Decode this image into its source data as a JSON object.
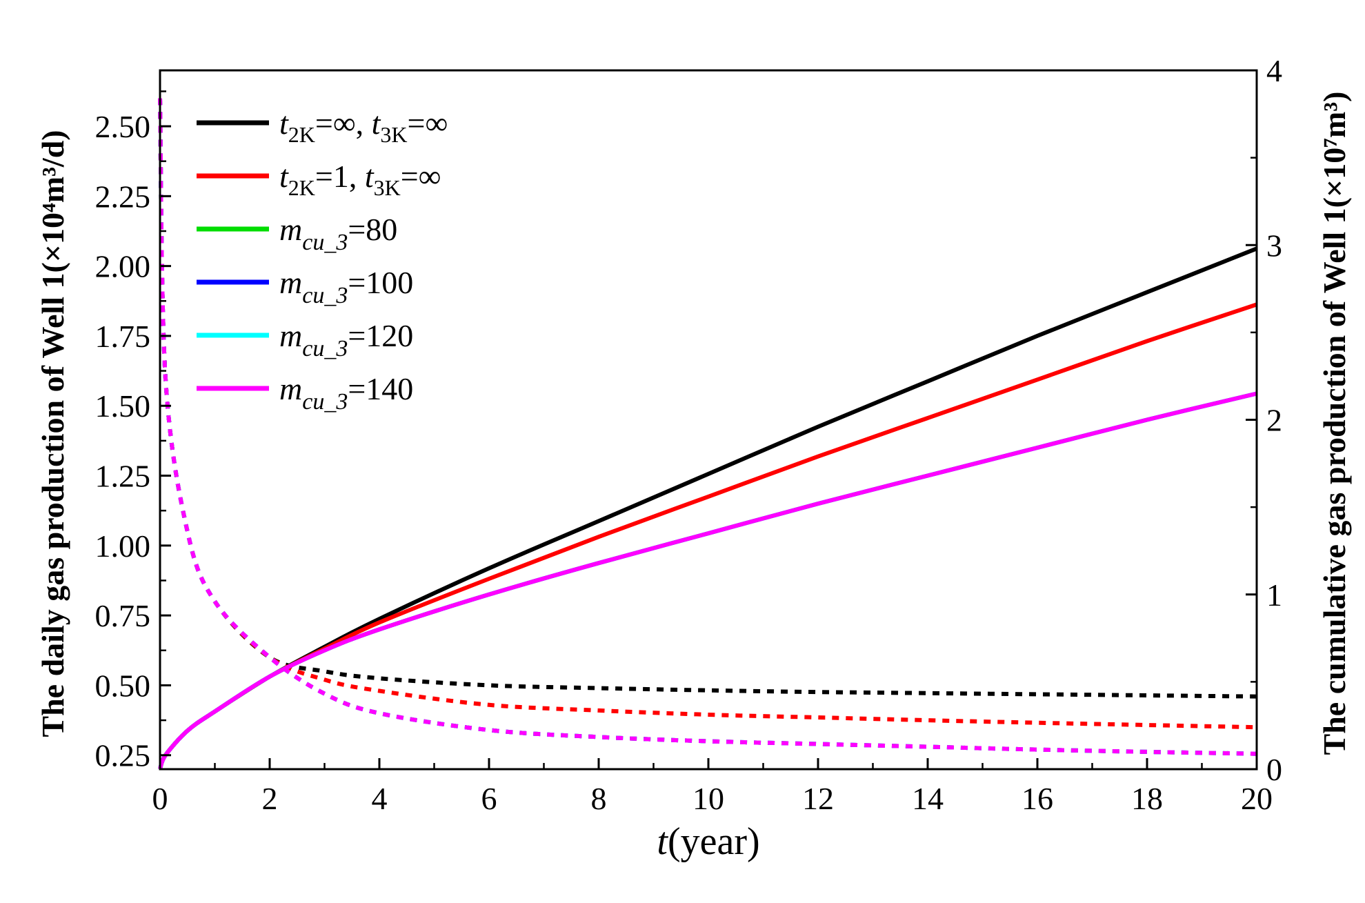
{
  "chart_data": {
    "type": "line",
    "x_axis": {
      "title_var": "t",
      "title_unit": "(year)",
      "range": [
        0,
        20
      ],
      "ticks": [
        0,
        2,
        4,
        6,
        8,
        10,
        12,
        14,
        16,
        18,
        20
      ],
      "tick_labels": [
        "0",
        "2",
        "4",
        "6",
        "8",
        "10",
        "12",
        "14",
        "16",
        "18",
        "20"
      ]
    },
    "y_left": {
      "title": "The daily gas production of Well 1(×10⁴m³/d)",
      "range": [
        0.2,
        2.7
      ],
      "ticks": [
        0.25,
        0.5,
        0.75,
        1.0,
        1.25,
        1.5,
        1.75,
        2.0,
        2.25,
        2.5
      ],
      "tick_labels": [
        "0.25",
        "0.50",
        "0.75",
        "1.00",
        "1.25",
        "1.50",
        "1.75",
        "2.00",
        "2.25",
        "2.50"
      ]
    },
    "y_right": {
      "title": "The cumulative gas production of Well 1(×10⁷m³)",
      "range": [
        0,
        4
      ],
      "ticks": [
        0,
        1,
        2,
        3,
        4
      ],
      "tick_labels": [
        "0",
        "1",
        "2",
        "3",
        "4"
      ]
    },
    "line_styles": {
      "solid": "cumulative gas production (right axis)",
      "dotted": "daily gas production (left axis)"
    },
    "legend_position": "top-left",
    "series": [
      {
        "name": "t2K=∞, t3K=∞",
        "legend_parts": [
          "t",
          "2K",
          "=∞, ",
          "t",
          "3K",
          "=∞"
        ],
        "color": "#000000",
        "x": [
          0,
          0.1,
          0.5,
          1,
          2,
          3,
          4,
          6,
          8,
          10,
          12,
          14,
          16,
          18,
          20
        ],
        "cumulative": [
          0,
          0.08,
          0.22,
          0.33,
          0.53,
          0.7,
          0.86,
          1.15,
          1.42,
          1.69,
          1.96,
          2.22,
          2.48,
          2.73,
          2.98
        ],
        "daily": [
          2.6,
          1.6,
          1.05,
          0.8,
          0.6,
          0.55,
          0.525,
          0.5,
          0.49,
          0.482,
          0.476,
          0.472,
          0.468,
          0.464,
          0.46
        ]
      },
      {
        "name": "t2K=1, t3K=∞",
        "legend_parts": [
          "t",
          "2K",
          "=1, ",
          "t",
          "3K",
          "=∞"
        ],
        "color": "#ff0000",
        "x": [
          0,
          0.1,
          0.5,
          1,
          2,
          3,
          4,
          6,
          8,
          10,
          12,
          14,
          16,
          18,
          20
        ],
        "cumulative": [
          0,
          0.08,
          0.22,
          0.33,
          0.53,
          0.69,
          0.84,
          1.09,
          1.33,
          1.56,
          1.79,
          2.01,
          2.23,
          2.45,
          2.66
        ],
        "daily": [
          2.6,
          1.6,
          1.05,
          0.8,
          0.6,
          0.52,
          0.48,
          0.43,
          0.41,
          0.395,
          0.385,
          0.375,
          0.366,
          0.358,
          0.35
        ]
      },
      {
        "name": "mcu_3=80",
        "legend_parts": [
          "m",
          "cu_3",
          "=80"
        ],
        "color": "#00dd00",
        "x": [
          0,
          0.1,
          0.5,
          1,
          2,
          3,
          4,
          6,
          8,
          10,
          12,
          14,
          16,
          18,
          20
        ],
        "cumulative": [
          0,
          0.08,
          0.22,
          0.33,
          0.53,
          0.68,
          0.8,
          1.0,
          1.18,
          1.35,
          1.52,
          1.68,
          1.84,
          2.0,
          2.15
        ],
        "daily": [
          2.6,
          1.6,
          1.05,
          0.8,
          0.6,
          0.47,
          0.4,
          0.34,
          0.315,
          0.3,
          0.29,
          0.28,
          0.27,
          0.262,
          0.255
        ]
      },
      {
        "name": "mcu_3=100",
        "legend_parts": [
          "m",
          "cu_3",
          "=100"
        ],
        "color": "#0000ff",
        "x": [
          0,
          0.1,
          0.5,
          1,
          2,
          3,
          4,
          6,
          8,
          10,
          12,
          14,
          16,
          18,
          20
        ],
        "cumulative": [
          0,
          0.08,
          0.22,
          0.33,
          0.53,
          0.68,
          0.8,
          1.0,
          1.18,
          1.35,
          1.52,
          1.68,
          1.84,
          2.0,
          2.15
        ],
        "daily": [
          2.6,
          1.6,
          1.05,
          0.8,
          0.6,
          0.47,
          0.4,
          0.34,
          0.315,
          0.3,
          0.29,
          0.28,
          0.27,
          0.262,
          0.255
        ]
      },
      {
        "name": "mcu_3=120",
        "legend_parts": [
          "m",
          "cu_3",
          "=120"
        ],
        "color": "#00ffff",
        "x": [
          0,
          0.1,
          0.5,
          1,
          2,
          3,
          4,
          6,
          8,
          10,
          12,
          14,
          16,
          18,
          20
        ],
        "cumulative": [
          0,
          0.08,
          0.22,
          0.33,
          0.53,
          0.68,
          0.8,
          1.0,
          1.18,
          1.35,
          1.52,
          1.68,
          1.84,
          2.0,
          2.15
        ],
        "daily": [
          2.6,
          1.6,
          1.05,
          0.8,
          0.6,
          0.47,
          0.4,
          0.34,
          0.315,
          0.3,
          0.29,
          0.28,
          0.27,
          0.262,
          0.255
        ]
      },
      {
        "name": "mcu_3=140",
        "legend_parts": [
          "m",
          "cu_3",
          "=140"
        ],
        "color": "#ff00ff",
        "x": [
          0,
          0.1,
          0.5,
          1,
          2,
          3,
          4,
          6,
          8,
          10,
          12,
          14,
          16,
          18,
          20
        ],
        "cumulative": [
          0,
          0.08,
          0.22,
          0.33,
          0.53,
          0.68,
          0.8,
          1.0,
          1.18,
          1.35,
          1.52,
          1.68,
          1.84,
          2.0,
          2.15
        ],
        "daily": [
          2.6,
          1.6,
          1.05,
          0.8,
          0.6,
          0.47,
          0.4,
          0.34,
          0.315,
          0.3,
          0.29,
          0.28,
          0.27,
          0.262,
          0.255
        ]
      }
    ]
  }
}
